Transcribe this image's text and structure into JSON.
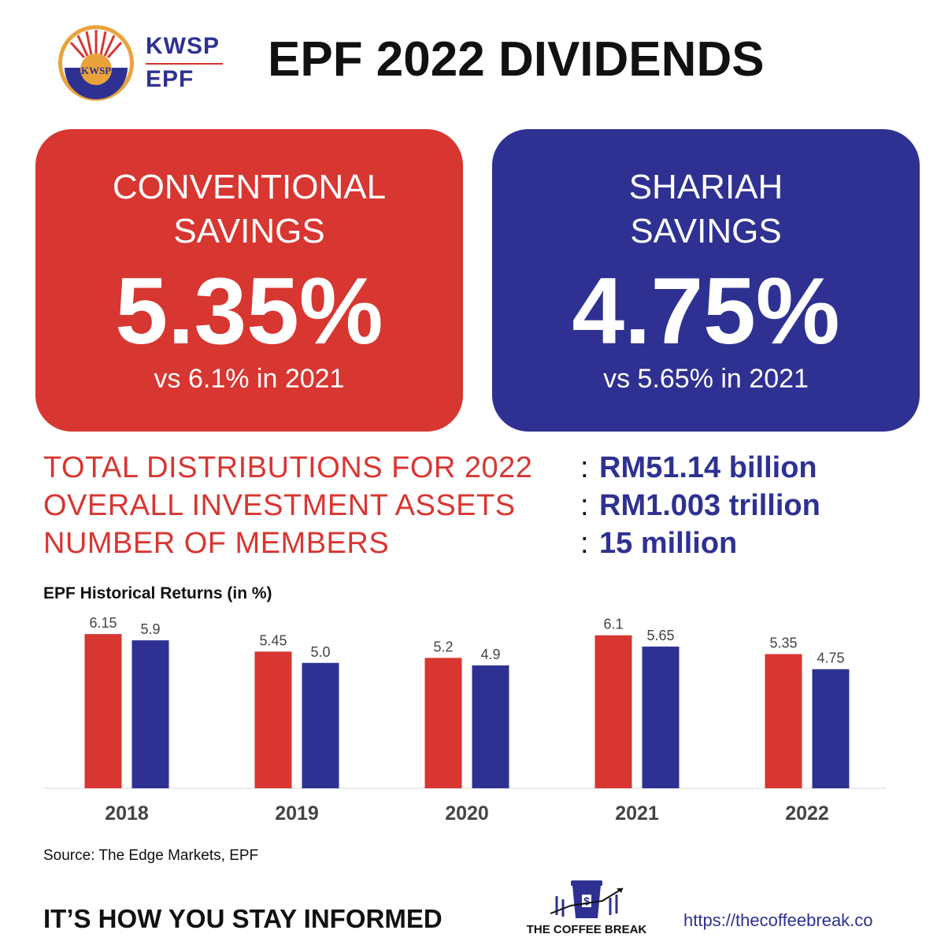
{
  "header": {
    "logo_top": "KWSP",
    "logo_bottom": "EPF",
    "seal_text": "KWSP",
    "title": "EPF 2022 DIVIDENDS"
  },
  "cards": {
    "conventional": {
      "label": "CONVENTIONAL\nSAVINGS",
      "rate": "5.35%",
      "comparison": "vs 6.1% in 2021",
      "color": "#d83631"
    },
    "shariah": {
      "label": "SHARIAH\nSAVINGS",
      "rate": "4.75%",
      "comparison": "vs 5.65% in 2021",
      "color": "#2e3192"
    }
  },
  "stats": [
    {
      "label": "TOTAL DISTRIBUTIONS FOR 2022",
      "value": "RM51.14 billion"
    },
    {
      "label": "OVERALL INVESTMENT ASSETS",
      "value": "RM1.003 trillion"
    },
    {
      "label": "NUMBER OF MEMBERS",
      "value": "15 million"
    }
  ],
  "stat_colon": ":",
  "chart_data": {
    "type": "bar",
    "title": "EPF  Historical Returns (in %)",
    "categories": [
      "2018",
      "2019",
      "2020",
      "2021",
      "2022"
    ],
    "series": [
      {
        "values": [
          6.15,
          5.45,
          5.2,
          6.1,
          5.35
        ],
        "labels": [
          "6.15",
          "5.45",
          "5.2",
          "6.1",
          "5.35"
        ],
        "color": "#d83631"
      },
      {
        "values": [
          5.9,
          5.0,
          4.9,
          5.65,
          4.75
        ],
        "labels": [
          "5.9",
          "5.0",
          "4.9",
          "5.65",
          "4.75"
        ],
        "color": "#2e3192"
      }
    ],
    "ylim": [
      0,
      6.5
    ],
    "grid": false,
    "xlabel": "",
    "ylabel": ""
  },
  "source": "Source: The Edge Markets, EPF",
  "footer": {
    "tagline": "IT’S HOW YOU STAY INFORMED",
    "brand_name": "THE COFFEE BREAK",
    "url": "https://thecoffeebreak.co"
  },
  "colors": {
    "red": "#d83631",
    "navy": "#2e3192"
  }
}
